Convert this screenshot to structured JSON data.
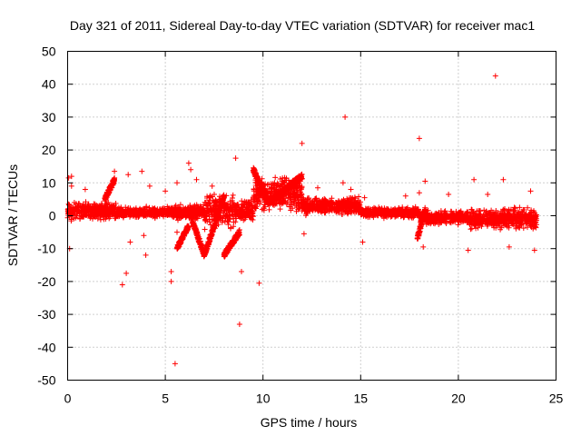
{
  "chart_data": {
    "type": "scatter",
    "title": "Day 321 of 2011, Sidereal Day-to-day VTEC variation (SDTVAR) for receiver mac1",
    "xlabel": "GPS time / hours",
    "ylabel": "SDTVAR / TECUs",
    "xlim": [
      0,
      25
    ],
    "ylim": [
      -50,
      50
    ],
    "xticks": [
      0,
      5,
      10,
      15,
      20,
      25
    ],
    "yticks": [
      -50,
      -40,
      -30,
      -20,
      -10,
      0,
      10,
      20,
      30,
      40,
      50
    ],
    "grid": true,
    "marker": "+",
    "color": "#ff0000",
    "series": [
      {
        "name": "SDTVAR",
        "bands": [
          {
            "x0": 0.0,
            "x1": 2.5,
            "lo": -2,
            "hi": 5
          },
          {
            "x0": 2.5,
            "x1": 5.5,
            "lo": -1,
            "hi": 3
          },
          {
            "x0": 5.5,
            "x1": 7.0,
            "lo": -2,
            "hi": 4
          },
          {
            "x0": 7.0,
            "x1": 8.5,
            "lo": -5,
            "hi": 8
          },
          {
            "x0": 8.5,
            "x1": 9.5,
            "lo": -3,
            "hi": 6
          },
          {
            "x0": 9.5,
            "x1": 12.0,
            "lo": 0,
            "hi": 13
          },
          {
            "x0": 12.0,
            "x1": 15.0,
            "lo": 0,
            "hi": 6
          },
          {
            "x0": 15.0,
            "x1": 18.0,
            "lo": -1,
            "hi": 3
          },
          {
            "x0": 18.0,
            "x1": 20.5,
            "lo": -3,
            "hi": 2
          },
          {
            "x0": 20.5,
            "x1": 24.0,
            "lo": -5,
            "hi": 3
          }
        ],
        "curves": [
          {
            "x0": 1.9,
            "x1": 2.4,
            "y0": 5,
            "y1": 11
          },
          {
            "x0": 6.3,
            "x1": 7.0,
            "y0": 0,
            "y1": -12
          },
          {
            "x0": 7.0,
            "x1": 8.0,
            "y0": -12,
            "y1": 6
          },
          {
            "x0": 8.0,
            "x1": 8.8,
            "y0": -12,
            "y1": -5
          },
          {
            "x0": 9.5,
            "x1": 10.3,
            "y0": 14,
            "y1": 4
          },
          {
            "x0": 10.3,
            "x1": 12.0,
            "y0": 4,
            "y1": 12
          },
          {
            "x0": 5.6,
            "x1": 6.2,
            "y0": -10,
            "y1": -3
          },
          {
            "x0": 17.9,
            "x1": 18.3,
            "y0": -7,
            "y1": 2
          }
        ],
        "points": [
          [
            0.05,
            11.5
          ],
          [
            0.2,
            12.0
          ],
          [
            0.1,
            -10.0
          ],
          [
            0.2,
            9.0
          ],
          [
            0.9,
            8.0
          ],
          [
            2.4,
            13.5
          ],
          [
            2.8,
            -21.0
          ],
          [
            3.0,
            -17.5
          ],
          [
            3.1,
            12.5
          ],
          [
            3.2,
            -8.0
          ],
          [
            3.8,
            13.5
          ],
          [
            3.9,
            -6.0
          ],
          [
            4.0,
            -12.0
          ],
          [
            4.2,
            9.0
          ],
          [
            5.0,
            7.5
          ],
          [
            5.3,
            -17.0
          ],
          [
            5.3,
            -20.0
          ],
          [
            5.5,
            -45.0
          ],
          [
            5.6,
            10.0
          ],
          [
            5.6,
            -5.0
          ],
          [
            6.2,
            16.0
          ],
          [
            6.3,
            14.0
          ],
          [
            6.6,
            11.0
          ],
          [
            7.4,
            9.0
          ],
          [
            8.6,
            17.5
          ],
          [
            8.8,
            -33.0
          ],
          [
            8.9,
            -17.0
          ],
          [
            9.8,
            -20.5
          ],
          [
            12.0,
            22.0
          ],
          [
            12.1,
            -5.5
          ],
          [
            12.8,
            8.5
          ],
          [
            14.2,
            30.0
          ],
          [
            14.1,
            10.0
          ],
          [
            14.5,
            8.0
          ],
          [
            15.1,
            -8.0
          ],
          [
            15.2,
            5.5
          ],
          [
            17.3,
            6.0
          ],
          [
            18.0,
            23.5
          ],
          [
            18.0,
            7.0
          ],
          [
            18.3,
            10.5
          ],
          [
            18.2,
            -9.5
          ],
          [
            19.5,
            6.5
          ],
          [
            20.5,
            -10.5
          ],
          [
            20.8,
            11.0
          ],
          [
            21.5,
            6.5
          ],
          [
            21.9,
            42.5
          ],
          [
            22.3,
            11.0
          ],
          [
            22.6,
            -9.5
          ],
          [
            23.7,
            7.5
          ],
          [
            23.9,
            -10.5
          ]
        ]
      }
    ]
  }
}
